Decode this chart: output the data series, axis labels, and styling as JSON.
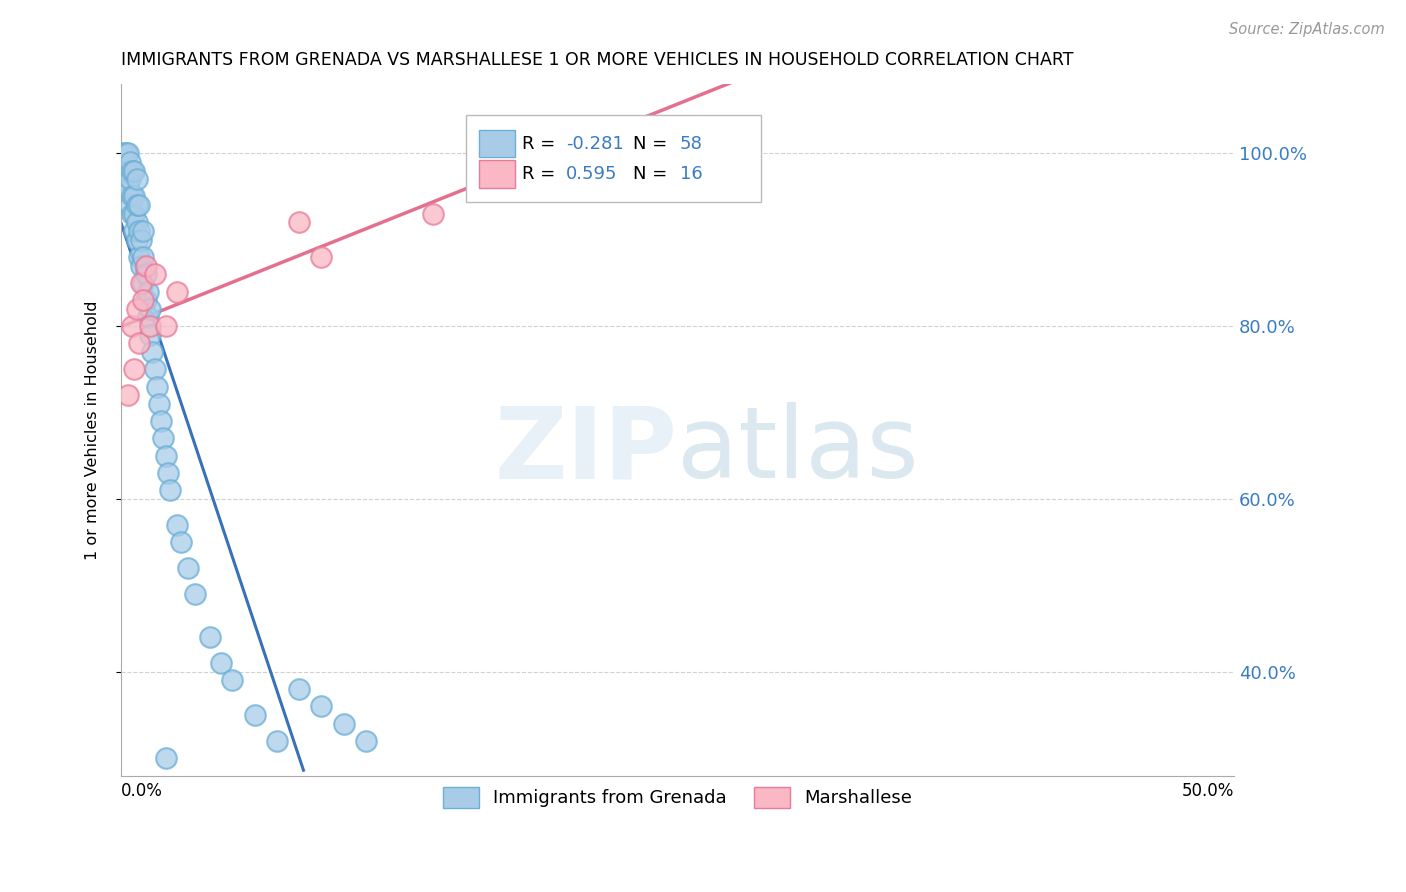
{
  "title": "IMMIGRANTS FROM GRENADA VS MARSHALLESE 1 OR MORE VEHICLES IN HOUSEHOLD CORRELATION CHART",
  "source": "Source: ZipAtlas.com",
  "ylabel": "1 or more Vehicles in Household",
  "xlim": [
    0.0,
    0.5
  ],
  "ylim": [
    0.28,
    1.08
  ],
  "yticks": [
    0.4,
    0.6,
    0.8,
    1.0
  ],
  "ytick_labels": [
    "40.0%",
    "60.0%",
    "80.0%",
    "100.0%"
  ],
  "legend_labels": [
    "Immigrants from Grenada",
    "Marshallese"
  ],
  "blue_R": -0.281,
  "blue_N": 58,
  "pink_R": 0.595,
  "pink_N": 16,
  "blue_line_color": "#3a72b8",
  "pink_line_color": "#e06080",
  "blue_fill_color": "#a8cce8",
  "blue_edge_color": "#6baed6",
  "pink_fill_color": "#f9b8c4",
  "pink_edge_color": "#e87a9a",
  "blue_points_x": [
    0.001,
    0.001,
    0.002,
    0.002,
    0.003,
    0.003,
    0.003,
    0.004,
    0.004,
    0.004,
    0.005,
    0.005,
    0.005,
    0.006,
    0.006,
    0.006,
    0.006,
    0.007,
    0.007,
    0.007,
    0.007,
    0.008,
    0.008,
    0.008,
    0.009,
    0.009,
    0.01,
    0.01,
    0.01,
    0.011,
    0.011,
    0.012,
    0.012,
    0.013,
    0.013,
    0.014,
    0.015,
    0.016,
    0.017,
    0.018,
    0.019,
    0.02,
    0.021,
    0.022,
    0.025,
    0.027,
    0.03,
    0.033,
    0.04,
    0.045,
    0.05,
    0.06,
    0.07,
    0.08,
    0.09,
    0.1,
    0.11,
    0.02
  ],
  "blue_points_y": [
    0.97,
    1.0,
    0.98,
    1.0,
    0.96,
    0.98,
    1.0,
    0.94,
    0.97,
    0.99,
    0.93,
    0.95,
    0.98,
    0.91,
    0.93,
    0.95,
    0.98,
    0.9,
    0.92,
    0.94,
    0.97,
    0.88,
    0.91,
    0.94,
    0.87,
    0.9,
    0.85,
    0.88,
    0.91,
    0.83,
    0.86,
    0.81,
    0.84,
    0.79,
    0.82,
    0.77,
    0.75,
    0.73,
    0.71,
    0.69,
    0.67,
    0.65,
    0.63,
    0.61,
    0.57,
    0.55,
    0.52,
    0.49,
    0.44,
    0.41,
    0.39,
    0.35,
    0.32,
    0.38,
    0.36,
    0.34,
    0.32,
    0.3
  ],
  "pink_points_x": [
    0.003,
    0.005,
    0.006,
    0.007,
    0.008,
    0.009,
    0.01,
    0.011,
    0.013,
    0.015,
    0.02,
    0.025,
    0.08,
    0.09,
    0.14,
    0.2
  ],
  "pink_points_y": [
    0.72,
    0.8,
    0.75,
    0.82,
    0.78,
    0.85,
    0.83,
    0.87,
    0.8,
    0.86,
    0.8,
    0.84,
    0.92,
    0.88,
    0.93,
    1.0
  ]
}
